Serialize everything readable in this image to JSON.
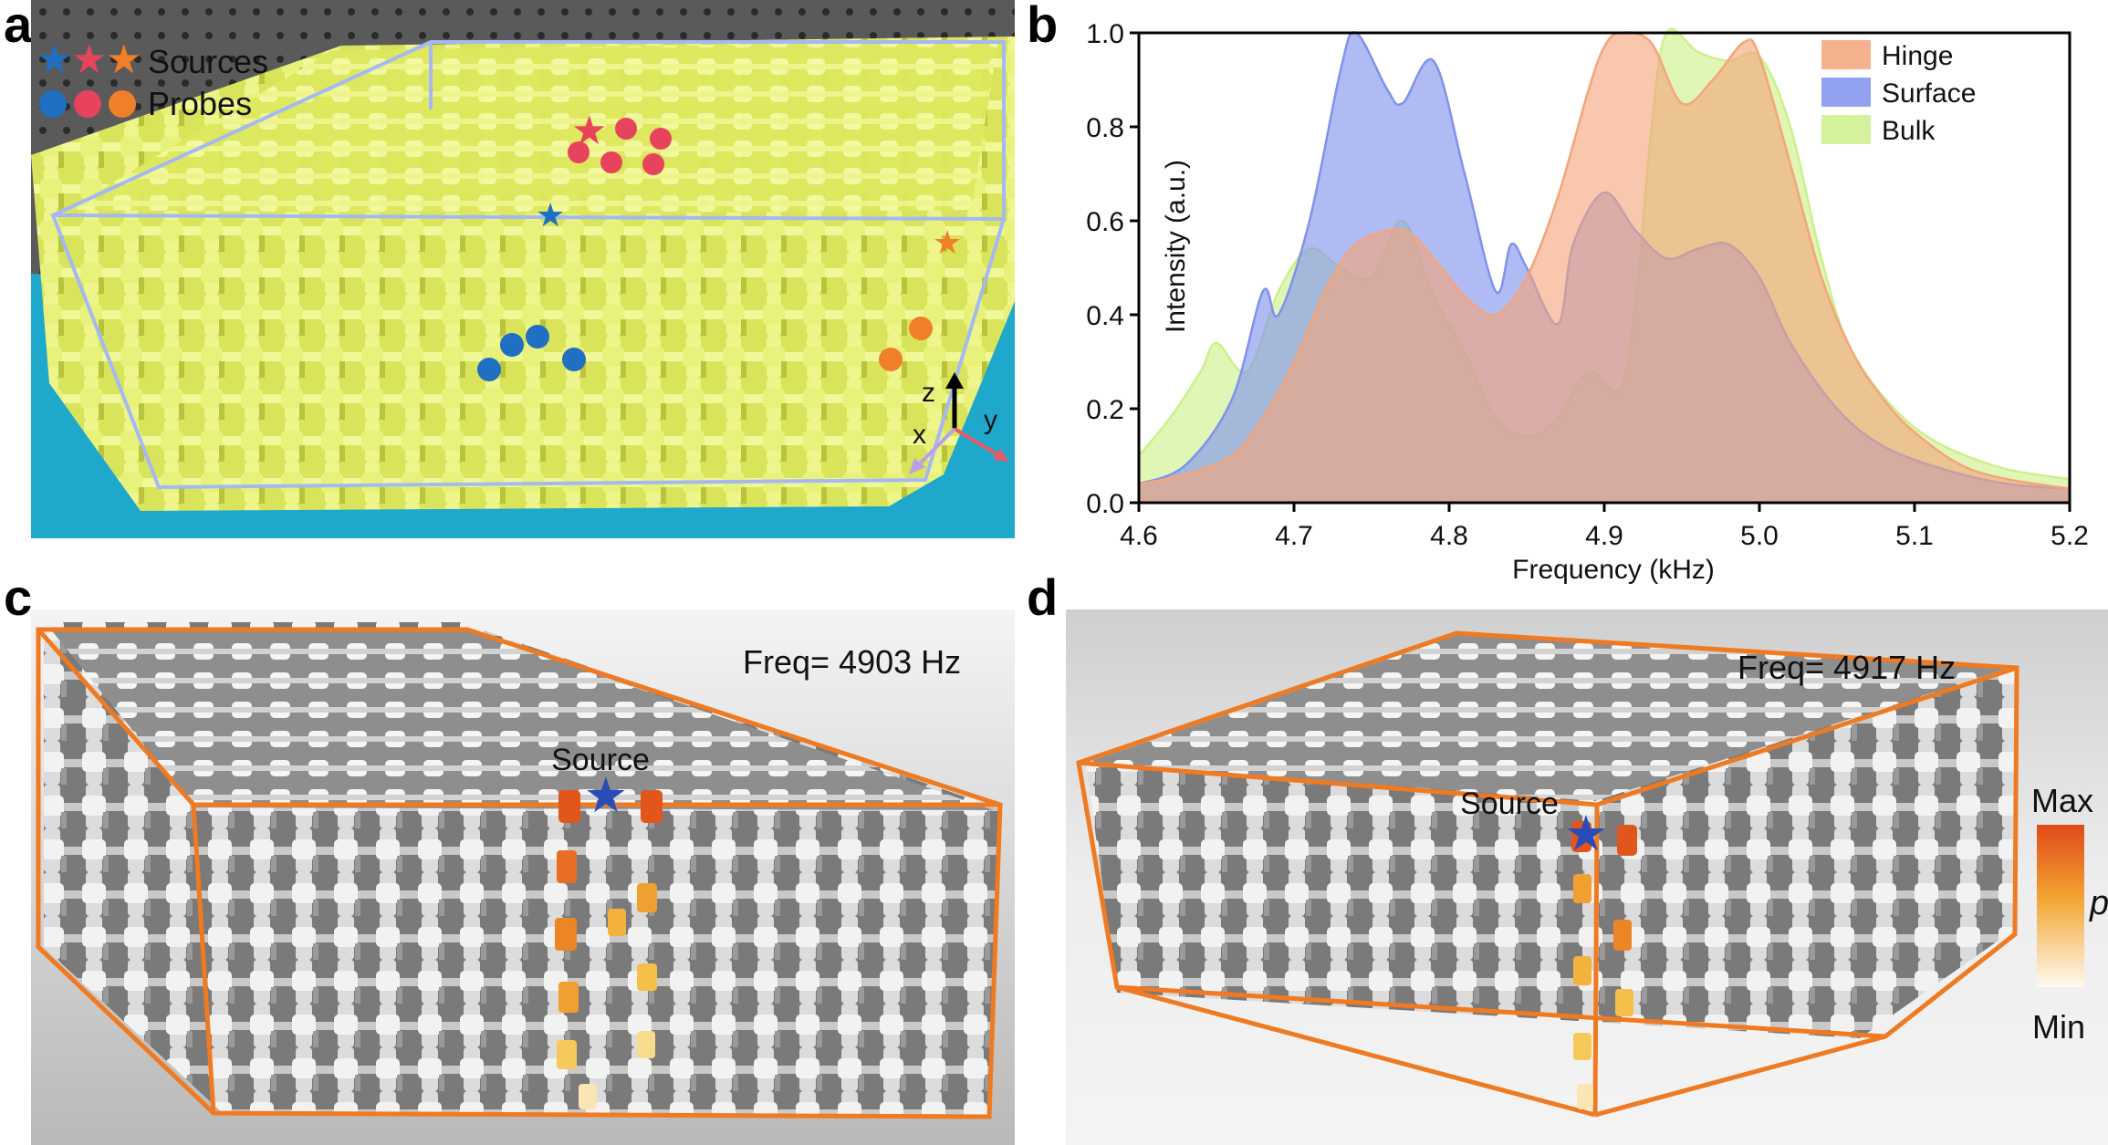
{
  "figure": {
    "panels": {
      "a": {
        "letter": "a",
        "legend": {
          "sources_label": "Sources",
          "probes_label": "Probes"
        },
        "axes": {
          "z": "z",
          "x": "x",
          "y": "y"
        },
        "colors": {
          "blue": "#1f6fc2",
          "red": "#e8435d",
          "orange": "#f07f2a",
          "frame": "#9fb3ee",
          "lattice": "#e4ef6c",
          "base": "#1aa7c9"
        }
      },
      "b": {
        "letter": "b"
      },
      "c": {
        "letter": "c",
        "freq": "Freq= 4903 Hz",
        "source_label": "Source"
      },
      "d": {
        "letter": "d",
        "freq": "Freq= 4917 Hz",
        "source_label": "Source",
        "colorbar": {
          "max": "Max",
          "min": "Min",
          "symbol": "p"
        }
      }
    }
  },
  "chart_data": {
    "type": "area",
    "title": "",
    "xlabel": "Frequency (kHz)",
    "ylabel": "Intensity (a.u.)",
    "xlim": [
      4.6,
      5.2
    ],
    "ylim": [
      0.0,
      1.0
    ],
    "xticks": [
      "4.6",
      "4.7",
      "4.8",
      "4.9",
      "5.0",
      "5.1",
      "5.2"
    ],
    "yticks": [
      "0.0",
      "0.2",
      "0.4",
      "0.6",
      "0.8",
      "1.0"
    ],
    "legend_position": "top-right",
    "series": [
      {
        "name": "Hinge",
        "color": "#f4a57a",
        "x": [
          4.6,
          4.63,
          4.66,
          4.68,
          4.7,
          4.72,
          4.74,
          4.77,
          4.79,
          4.81,
          4.83,
          4.85,
          4.87,
          4.89,
          4.9,
          4.91,
          4.93,
          4.95,
          4.97,
          4.99,
          5.0,
          5.02,
          5.04,
          5.06,
          5.08,
          5.1,
          5.13,
          5.16,
          5.2
        ],
        "values": [
          0.04,
          0.06,
          0.1,
          0.18,
          0.3,
          0.45,
          0.55,
          0.58,
          0.52,
          0.44,
          0.4,
          0.48,
          0.65,
          0.88,
          0.97,
          1.0,
          0.98,
          0.85,
          0.9,
          0.98,
          0.95,
          0.72,
          0.48,
          0.32,
          0.22,
          0.15,
          0.08,
          0.05,
          0.03
        ]
      },
      {
        "name": "Surface",
        "color": "#7f92ee",
        "x": [
          4.6,
          4.63,
          4.66,
          4.68,
          4.69,
          4.71,
          4.73,
          4.74,
          4.76,
          4.77,
          4.79,
          4.81,
          4.83,
          4.84,
          4.85,
          4.87,
          4.88,
          4.9,
          4.92,
          4.94,
          4.96,
          4.98,
          5.0,
          5.02,
          5.05,
          5.08,
          5.12,
          5.16,
          5.2
        ],
        "values": [
          0.04,
          0.08,
          0.22,
          0.45,
          0.4,
          0.6,
          0.92,
          1.0,
          0.88,
          0.85,
          0.94,
          0.7,
          0.45,
          0.55,
          0.5,
          0.38,
          0.55,
          0.66,
          0.58,
          0.52,
          0.54,
          0.55,
          0.48,
          0.34,
          0.2,
          0.12,
          0.07,
          0.04,
          0.03
        ]
      },
      {
        "name": "Bulk",
        "color": "#cdf08a",
        "x": [
          4.6,
          4.62,
          4.64,
          4.65,
          4.67,
          4.69,
          4.71,
          4.73,
          4.75,
          4.77,
          4.79,
          4.81,
          4.83,
          4.85,
          4.87,
          4.89,
          4.91,
          4.92,
          4.93,
          4.94,
          4.96,
          4.98,
          5.0,
          5.02,
          5.04,
          5.06,
          5.1,
          5.15,
          5.2
        ],
        "values": [
          0.1,
          0.18,
          0.28,
          0.34,
          0.28,
          0.45,
          0.54,
          0.5,
          0.48,
          0.6,
          0.44,
          0.32,
          0.18,
          0.14,
          0.18,
          0.28,
          0.24,
          0.42,
          0.78,
          1.0,
          0.96,
          0.94,
          0.95,
          0.8,
          0.52,
          0.32,
          0.16,
          0.08,
          0.05
        ]
      }
    ]
  }
}
